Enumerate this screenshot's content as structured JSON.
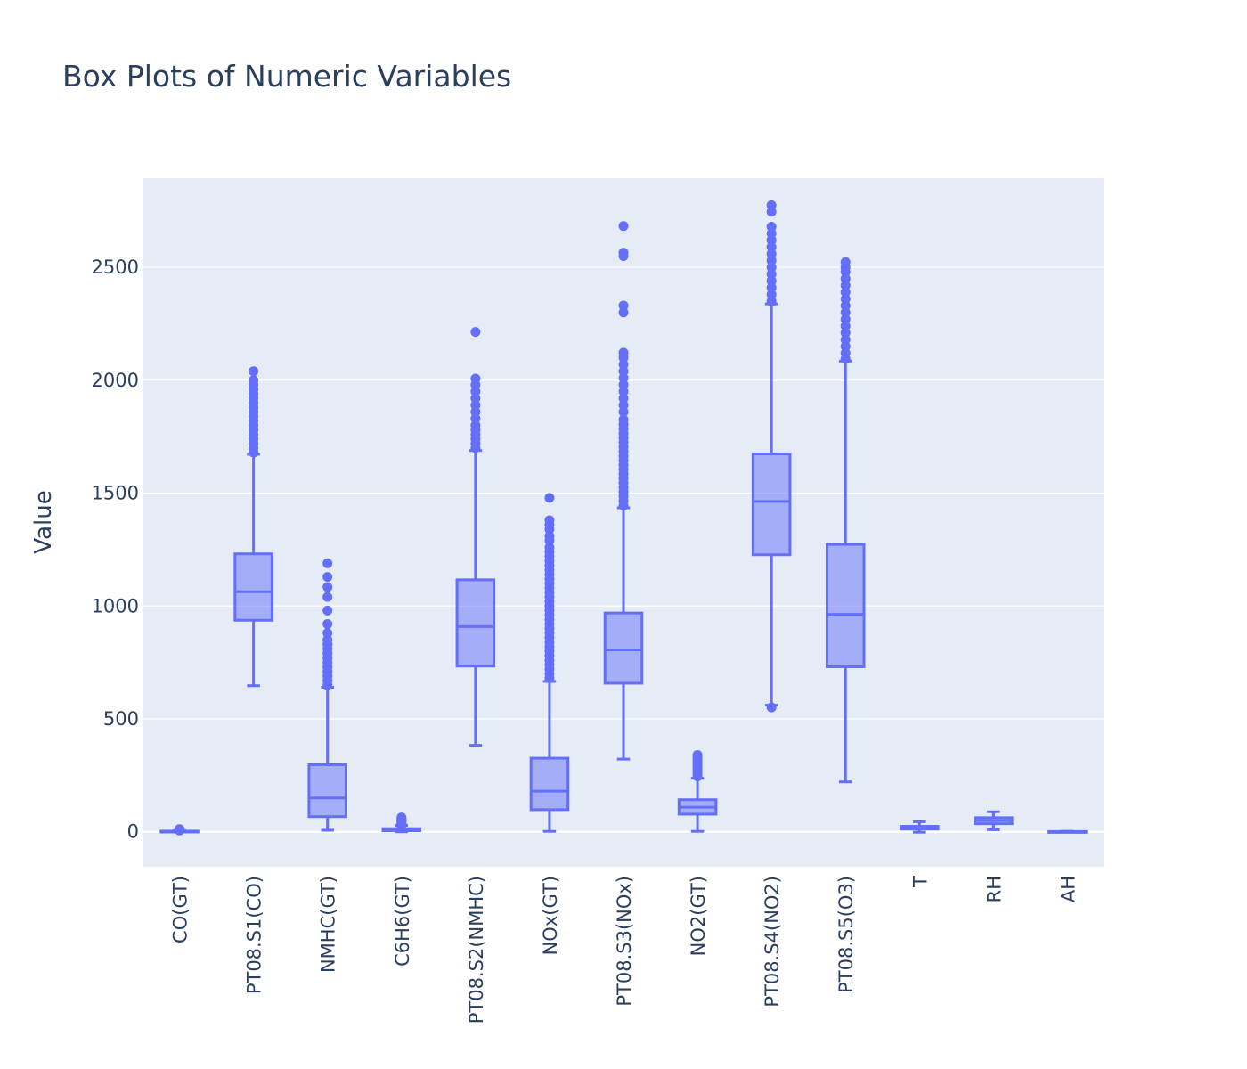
{
  "chart_data": {
    "type": "box",
    "title": "Box Plots of Numeric Variables",
    "xlabel": "",
    "ylabel": "Value",
    "ylim": [
      -155,
      2895
    ],
    "y_ticks": [
      0,
      500,
      1000,
      1500,
      2000,
      2500
    ],
    "grid": true,
    "legend": "none",
    "colors": {
      "line": "#636efa",
      "fill": "rgba(99,110,250,0.5)",
      "plot_bg": "#e5ecf6",
      "grid": "#ffffff",
      "text": "#2a3f5f"
    },
    "categories": [
      "CO(GT)",
      "PT08.S1(CO)",
      "NMHC(GT)",
      "C6H6(GT)",
      "PT08.S2(NMHC)",
      "NOx(GT)",
      "PT08.S3(NOx)",
      "NO2(GT)",
      "PT08.S4(NO2)",
      "PT08.S5(O3)",
      "T",
      "RH",
      "AH"
    ],
    "boxes": [
      {
        "name": "CO(GT)",
        "lower_fence": 0.1,
        "q1": 1.1,
        "median": 1.8,
        "q3": 2.9,
        "upper_fence": 5.6,
        "outliers": [
          6,
          7,
          8,
          9,
          10,
          11.9
        ]
      },
      {
        "name": "PT08.S1(CO)",
        "lower_fence": 647,
        "q1": 937,
        "median": 1063,
        "q3": 1231,
        "upper_fence": 1672,
        "outliers": [
          1680,
          1700,
          1720,
          1740,
          1760,
          1780,
          1800,
          1820,
          1840,
          1860,
          1880,
          1900,
          1920,
          1940,
          1960,
          1980,
          2000,
          2040
        ]
      },
      {
        "name": "NMHC(GT)",
        "lower_fence": 7,
        "q1": 67,
        "median": 150,
        "q3": 297,
        "upper_fence": 640,
        "outliers": [
          650,
          670,
          690,
          710,
          730,
          750,
          770,
          790,
          810,
          830,
          850,
          880,
          920,
          980,
          1040,
          1084,
          1129,
          1189
        ]
      },
      {
        "name": "C6H6(GT)",
        "lower_fence": 0.1,
        "q1": 4.4,
        "median": 8.2,
        "q3": 14,
        "upper_fence": 28.5,
        "outliers": [
          30,
          33,
          36,
          40,
          44,
          48,
          52,
          56,
          60,
          63.7
        ]
      },
      {
        "name": "PT08.S2(NMHC)",
        "lower_fence": 383,
        "q1": 734,
        "median": 909,
        "q3": 1116,
        "upper_fence": 1689,
        "outliers": [
          1700,
          1720,
          1740,
          1760,
          1780,
          1800,
          1830,
          1860,
          1890,
          1920,
          1950,
          1980,
          2007,
          2214
        ]
      },
      {
        "name": "NOx(GT)",
        "lower_fence": 2,
        "q1": 98,
        "median": 180,
        "q3": 326,
        "upper_fence": 666,
        "outliers": [
          680,
          700,
          720,
          740,
          760,
          780,
          800,
          820,
          840,
          860,
          880,
          900,
          920,
          940,
          960,
          980,
          1000,
          1020,
          1040,
          1060,
          1080,
          1100,
          1120,
          1140,
          1160,
          1180,
          1200,
          1220,
          1240,
          1260,
          1290,
          1310,
          1340,
          1360,
          1380,
          1479
        ]
      },
      {
        "name": "PT08.S3(NOx)",
        "lower_fence": 322,
        "q1": 658,
        "median": 806,
        "q3": 969,
        "upper_fence": 1435,
        "outliers": [
          1445,
          1465,
          1485,
          1505,
          1525,
          1545,
          1565,
          1585,
          1605,
          1625,
          1645,
          1665,
          1685,
          1705,
          1725,
          1745,
          1765,
          1785,
          1805,
          1825,
          1860,
          1890,
          1920,
          1950,
          1980,
          2010,
          2040,
          2070,
          2100,
          2122,
          2300,
          2331,
          2550,
          2565,
          2683
        ]
      },
      {
        "name": "NO2(GT)",
        "lower_fence": 2,
        "q1": 78,
        "median": 109,
        "q3": 142,
        "upper_fence": 237,
        "outliers": [
          245,
          255,
          265,
          275,
          285,
          295,
          305,
          315,
          325,
          333,
          340
        ]
      },
      {
        "name": "PT08.S4(NO2)",
        "lower_fence": 561,
        "q1": 1227,
        "median": 1463,
        "q3": 1674,
        "upper_fence": 2338,
        "outliers": [
          551,
          2350,
          2380,
          2410,
          2440,
          2470,
          2500,
          2530,
          2560,
          2590,
          2620,
          2650,
          2680,
          2746,
          2775
        ]
      },
      {
        "name": "PT08.S5(O3)",
        "lower_fence": 221,
        "q1": 731,
        "median": 963,
        "q3": 1273,
        "upper_fence": 2085,
        "outliers": [
          2095,
          2120,
          2150,
          2180,
          2210,
          2240,
          2270,
          2300,
          2330,
          2360,
          2390,
          2420,
          2450,
          2480,
          2500,
          2523
        ]
      },
      {
        "name": "T",
        "lower_fence": -1.9,
        "q1": 11.8,
        "median": 17.8,
        "q3": 24.4,
        "upper_fence": 44.6,
        "outliers": []
      },
      {
        "name": "RH",
        "lower_fence": 9.2,
        "q1": 35.8,
        "median": 49.6,
        "q3": 62.5,
        "upper_fence": 88.7,
        "outliers": []
      },
      {
        "name": "AH",
        "lower_fence": 0.18,
        "q1": 0.74,
        "median": 1.0,
        "q3": 1.3,
        "upper_fence": 2.2,
        "outliers": []
      }
    ]
  }
}
